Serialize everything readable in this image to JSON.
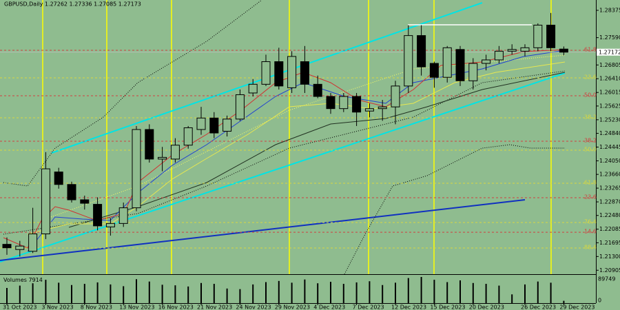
{
  "chart_data": {
    "type": "candlestick",
    "title": "GBPUSD,Daily  1.27262 1.27336 1.27085 1.27173",
    "categories": [
      "31 Oct 2023",
      null,
      null,
      "3 Nov 2023",
      null,
      null,
      "8 Nov 2023",
      null,
      null,
      "13 Nov 2023",
      null,
      null,
      "16 Nov 2023",
      null,
      null,
      "21 Nov 2023",
      null,
      null,
      "24 Nov 2023",
      null,
      null,
      "29 Nov 2023",
      null,
      null,
      "4 Dec 2023",
      null,
      null,
      "7 Dec 2023",
      null,
      null,
      "12 Dec 2023",
      null,
      null,
      "15 Dec 2023",
      null,
      null,
      "20 Dec 2023",
      null,
      null,
      null,
      "26 Dec 2023",
      null,
      null,
      "29 Dec 2023"
    ],
    "open": [
      1.2165,
      1.215,
      1.2145,
      1.2195,
      1.2373,
      1.2337,
      1.2293,
      1.228,
      1.2215,
      1.2225,
      1.227,
      1.2495,
      1.241,
      1.241,
      1.245,
      1.2495,
      1.2528,
      1.249,
      1.2525,
      1.26,
      1.2625,
      1.269,
      1.2615,
      1.269,
      1.2625,
      1.259,
      1.2555,
      1.259,
      1.2548,
      1.2555,
      1.256,
      1.262,
      1.2765,
      1.2685,
      1.2645,
      1.2725,
      1.2635,
      1.2685,
      1.2695,
      1.272,
      1.272,
      1.273,
      1.2795,
      1.27262
    ],
    "high": [
      1.2185,
      1.2175,
      1.227,
      1.243,
      1.2385,
      1.2345,
      1.2305,
      1.23,
      1.224,
      1.2285,
      1.2505,
      1.251,
      1.2445,
      1.247,
      1.2505,
      1.256,
      1.2545,
      1.2535,
      1.261,
      1.264,
      1.271,
      1.273,
      1.272,
      1.2735,
      1.265,
      1.26,
      1.26,
      1.26,
      1.257,
      1.258,
      1.2635,
      1.2795,
      1.2795,
      1.269,
      1.2735,
      1.2735,
      1.27,
      1.271,
      1.2735,
      1.274,
      1.274,
      1.28,
      1.283,
      1.27336
    ],
    "low": [
      1.2135,
      1.213,
      1.214,
      1.218,
      1.2325,
      1.2285,
      1.2265,
      1.2205,
      1.219,
      1.2215,
      1.226,
      1.24,
      1.2375,
      1.24,
      1.244,
      1.248,
      1.247,
      1.2475,
      1.252,
      1.259,
      1.262,
      1.261,
      1.26,
      1.26,
      1.2585,
      1.254,
      1.2545,
      1.2505,
      1.253,
      1.252,
      1.251,
      1.26,
      1.265,
      1.2615,
      1.263,
      1.262,
      1.261,
      1.2665,
      1.2685,
      1.271,
      1.2705,
      1.272,
      1.272,
      1.27085
    ],
    "close": [
      1.2155,
      1.216,
      1.2195,
      1.2382,
      1.2337,
      1.2293,
      1.2283,
      1.2218,
      1.2225,
      1.227,
      1.2495,
      1.241,
      1.2415,
      1.245,
      1.25,
      1.2528,
      1.2485,
      1.2525,
      1.2595,
      1.2625,
      1.269,
      1.262,
      1.2705,
      1.2625,
      1.259,
      1.2555,
      1.259,
      1.2545,
      1.2555,
      1.256,
      1.262,
      1.2765,
      1.2675,
      1.2645,
      1.273,
      1.2635,
      1.2685,
      1.2695,
      1.272,
      1.2725,
      1.273,
      1.2795,
      1.273,
      1.27173
    ],
    "bull_color": "#8fbc8f",
    "bear_color": "#000000",
    "ylim": [
      1.20792,
      1.28672
    ],
    "yticks": [
      1.28375,
      {
        "value": 1.2759,
        "label": "1.27590"
      },
      {
        "value": 1.26805,
        "label": "1.26805"
      },
      {
        "value": 1.2641,
        "label": "1.26410"
      },
      {
        "value": 1.26015,
        "label": "1.26015"
      },
      {
        "value": 1.25625,
        "label": "1.25625"
      },
      {
        "value": 1.2523,
        "label": "1.25230"
      },
      {
        "value": 1.2484,
        "label": "1.24840"
      },
      {
        "value": 1.24445,
        "label": "1.24445"
      },
      {
        "value": 1.2405,
        "label": "1.24050"
      },
      {
        "value": 1.2366,
        "label": "1.23660"
      },
      {
        "value": 1.23265,
        "label": "1.23265"
      },
      {
        "value": 1.2287,
        "label": "1.22870"
      },
      {
        "value": 1.2248,
        "label": "1.22480"
      },
      {
        "value": 1.22085,
        "label": "1.22085"
      },
      {
        "value": 1.21695,
        "label": "1.21695"
      },
      {
        "value": 1.213,
        "label": "1.21300"
      },
      {
        "value": 1.20905,
        "label": "1.20905"
      }
    ],
    "current_price": 1.27172,
    "levels": [
      {
        "label": "61.8",
        "price": 1.27227,
        "color": "#d04040"
      },
      {
        "label": "23.6",
        "price": 1.26435,
        "color": "#d8d840"
      },
      {
        "label": "50.0",
        "price": 1.2592,
        "color": "#d04040"
      },
      {
        "label": "38.2",
        "price": 1.25286,
        "color": "#d8d840"
      },
      {
        "label": "38.2",
        "price": 1.24613,
        "color": "#d04040"
      },
      {
        "label": "50.0",
        "price": 1.24356,
        "color": "#d8d840"
      },
      {
        "label": "61.8",
        "price": 1.23405,
        "color": "#d8d840"
      },
      {
        "label": "23.6",
        "price": 1.22989,
        "color": "#d04040"
      },
      {
        "label": "76.4",
        "price": 1.22277,
        "color": "#d8d840"
      },
      {
        "label": "14.6",
        "price": 1.21998,
        "color": "#d04040"
      },
      {
        "label": "88.4",
        "price": 1.21544,
        "color": "#d8d840"
      }
    ],
    "volume_label": "Volumes",
    "volumes": [
      52000,
      60000,
      68000,
      80000,
      70000,
      62000,
      66000,
      71000,
      64000,
      58000,
      82000,
      74000,
      63000,
      61000,
      57000,
      69000,
      66000,
      50000,
      48000,
      64000,
      72000,
      76000,
      70000,
      81000,
      68000,
      73000,
      66000,
      71000,
      75000,
      62000,
      70000,
      86000,
      89749,
      80000,
      72000,
      78000,
      69000,
      66000,
      60000,
      30000,
      64000,
      74000,
      70000,
      7914
    ],
    "vlim": [
      0,
      89749
    ],
    "vticks": [
      89749,
      0
    ]
  }
}
